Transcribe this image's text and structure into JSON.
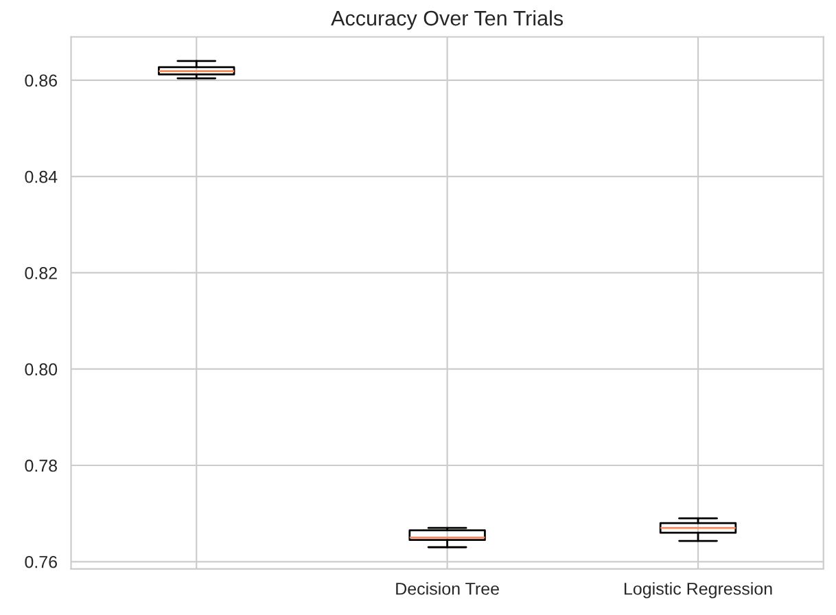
{
  "chart_data": {
    "type": "box",
    "title": "Accuracy Over Ten Trials",
    "categories": [
      null,
      "Decision Tree",
      "Logistic Regression"
    ],
    "boxes": [
      {
        "low": 0.8604,
        "q1": 0.8612,
        "median": 0.8619,
        "q3": 0.8627,
        "high": 0.864
      },
      {
        "low": 0.763,
        "q1": 0.7645,
        "median": 0.765,
        "q3": 0.7665,
        "high": 0.767
      },
      {
        "low": 0.7643,
        "q1": 0.766,
        "median": 0.767,
        "q3": 0.768,
        "high": 0.769
      }
    ],
    "color": "#000000",
    "ylim": [
      0.7585,
      0.869
    ],
    "yticks": [
      {
        "value": 0.76,
        "label": "0.76"
      },
      {
        "value": 0.78,
        "label": "0.78"
      },
      {
        "value": 0.8,
        "label": "0.80"
      },
      {
        "value": 0.82,
        "label": "0.82"
      },
      {
        "value": 0.84,
        "label": "0.84"
      },
      {
        "value": 0.86,
        "label": "0.86"
      }
    ],
    "grid": true
  }
}
